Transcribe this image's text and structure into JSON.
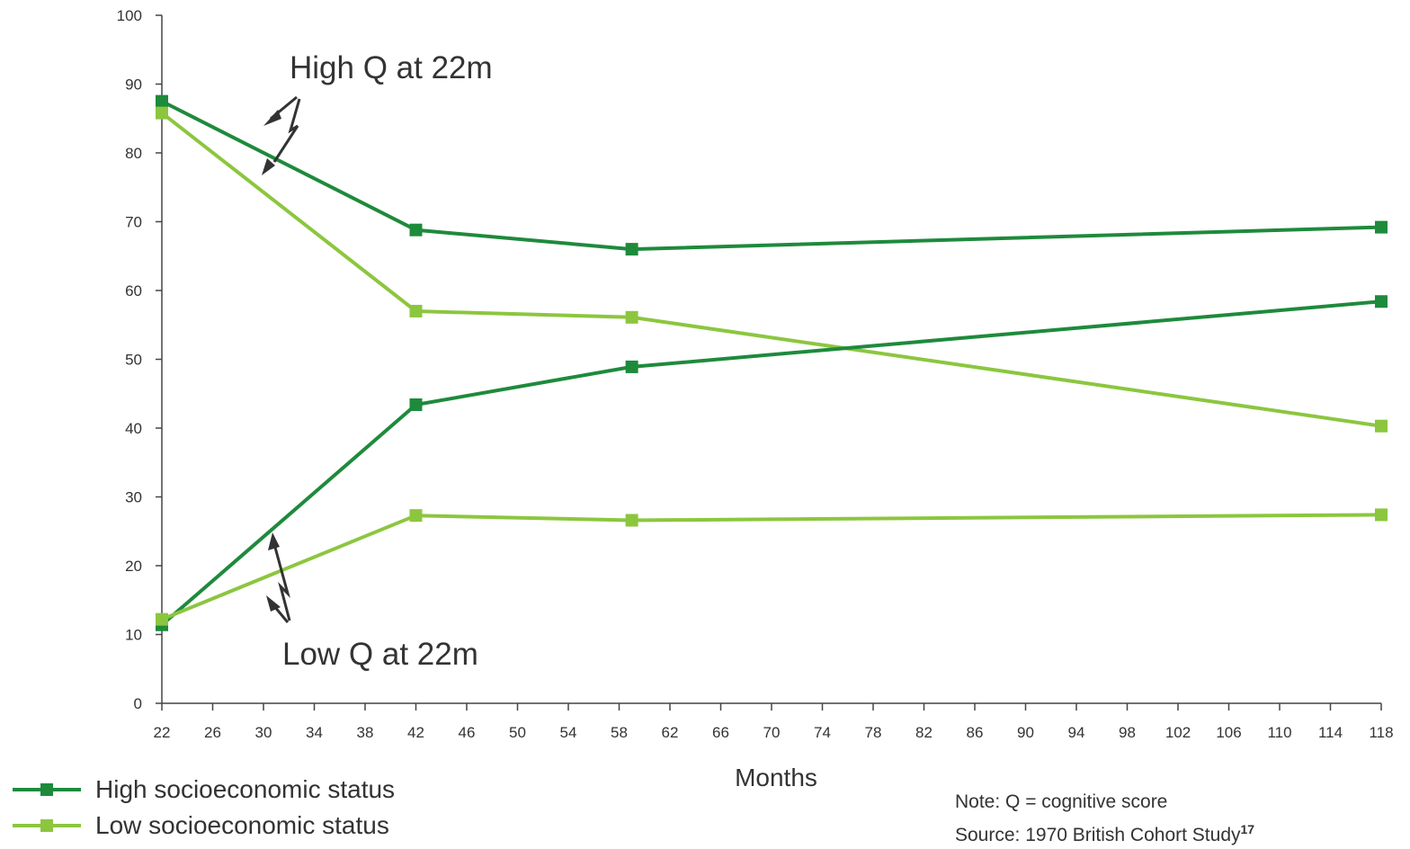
{
  "chart_data": {
    "type": "line",
    "title": "",
    "xlabel": "Months",
    "ylabel": "",
    "xlim": [
      22,
      118
    ],
    "ylim": [
      0,
      100
    ],
    "x_ticks": [
      22,
      26,
      30,
      34,
      38,
      42,
      46,
      50,
      54,
      58,
      62,
      66,
      70,
      74,
      78,
      82,
      86,
      90,
      94,
      98,
      102,
      106,
      110,
      114,
      118
    ],
    "y_ticks": [
      0,
      10,
      20,
      30,
      40,
      50,
      60,
      70,
      80,
      90,
      100
    ],
    "grid": false,
    "legend_position": "bottom-left",
    "legend": [
      {
        "label": "High socioeconomic status",
        "color": "#1e8a3c"
      },
      {
        "label": "Low socioeconomic status",
        "color": "#8cc63f"
      }
    ],
    "series": [
      {
        "legend": "High socioeconomic status",
        "group": "High Q at 22m",
        "color": "#1e8a3c",
        "points": [
          [
            22,
            87.5
          ],
          [
            42,
            68.8
          ],
          [
            59,
            66.0
          ],
          [
            118,
            69.2
          ]
        ]
      },
      {
        "legend": "Low socioeconomic status",
        "group": "High Q at 22m",
        "color": "#8cc63f",
        "points": [
          [
            22,
            85.8
          ],
          [
            42,
            57.0
          ],
          [
            59,
            56.1
          ],
          [
            118,
            40.3
          ]
        ]
      },
      {
        "legend": "High socioeconomic status",
        "group": "Low Q at 22m",
        "color": "#1e8a3c",
        "points": [
          [
            22,
            11.4
          ],
          [
            42,
            43.4
          ],
          [
            59,
            48.9
          ],
          [
            118,
            58.4
          ]
        ]
      },
      {
        "legend": "Low socioeconomic status",
        "group": "Low Q at 22m",
        "color": "#8cc63f",
        "points": [
          [
            22,
            12.2
          ],
          [
            42,
            27.3
          ],
          [
            59,
            26.6
          ],
          [
            118,
            27.4
          ]
        ]
      }
    ],
    "annotations": [
      {
        "text": "High Q at 22m"
      },
      {
        "text": "Low Q at 22m"
      }
    ],
    "note": "Note: Q = cognitive score",
    "source": "Source: 1970 British Cohort Study",
    "source_ref": "17"
  }
}
